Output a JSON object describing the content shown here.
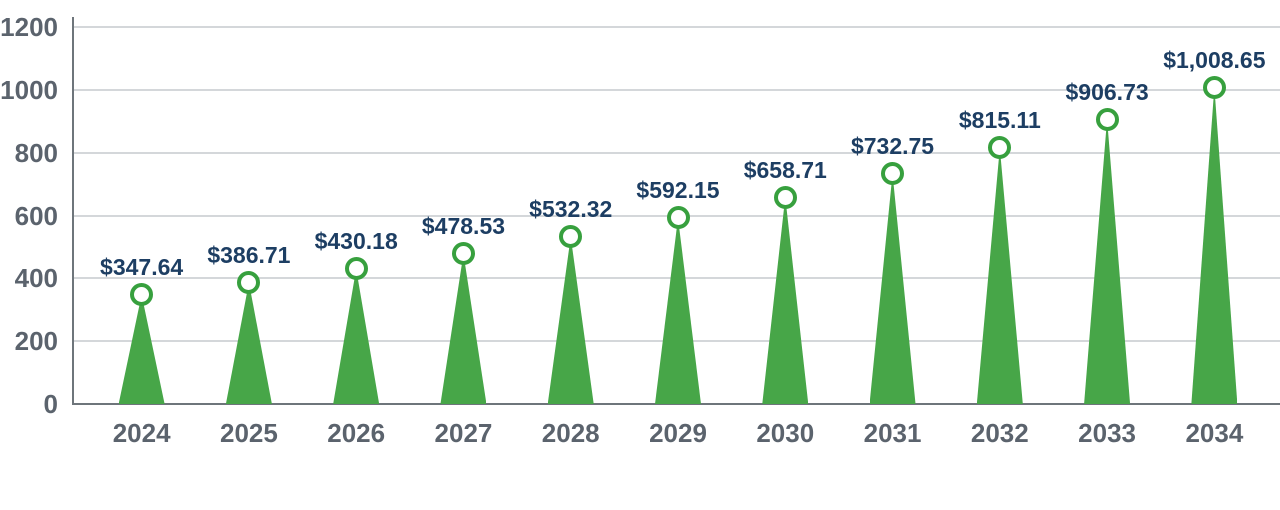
{
  "chart_data": {
    "type": "bar",
    "variant": "cone-bars-with-circle-markers",
    "title": "",
    "xlabel": "",
    "ylabel": "",
    "categories": [
      "2024",
      "2025",
      "2026",
      "2027",
      "2028",
      "2029",
      "2030",
      "2031",
      "2032",
      "2033",
      "2034"
    ],
    "series": [
      {
        "name": "value",
        "values": [
          347.64,
          386.71,
          430.18,
          478.53,
          532.32,
          592.15,
          658.71,
          732.75,
          815.11,
          906.73,
          1008.65
        ]
      }
    ],
    "value_labels": [
      "$347.64",
      "$386.71",
      "$430.18",
      "$478.53",
      "$532.32",
      "$592.15",
      "$658.71",
      "$732.75",
      "$815.11",
      "$906.73",
      "$1,008.65"
    ],
    "ylim": [
      0,
      1200
    ],
    "yticks": [
      0,
      200,
      400,
      600,
      800,
      1000,
      1200
    ],
    "ytick_labels": [
      "0",
      "200",
      "400",
      "600",
      "800",
      "1000",
      "1200"
    ],
    "grid": true,
    "legend": false,
    "colors": {
      "cone_fill": "#47a648",
      "marker_ring": "#37a03e",
      "marker_fill": "#ffffff",
      "value_label_text": "#1d3e63",
      "axis_tick_text": "#5b636d",
      "gridline": "#d4d7da",
      "axis_line": "#6e757b",
      "background": "#ffffff"
    }
  }
}
